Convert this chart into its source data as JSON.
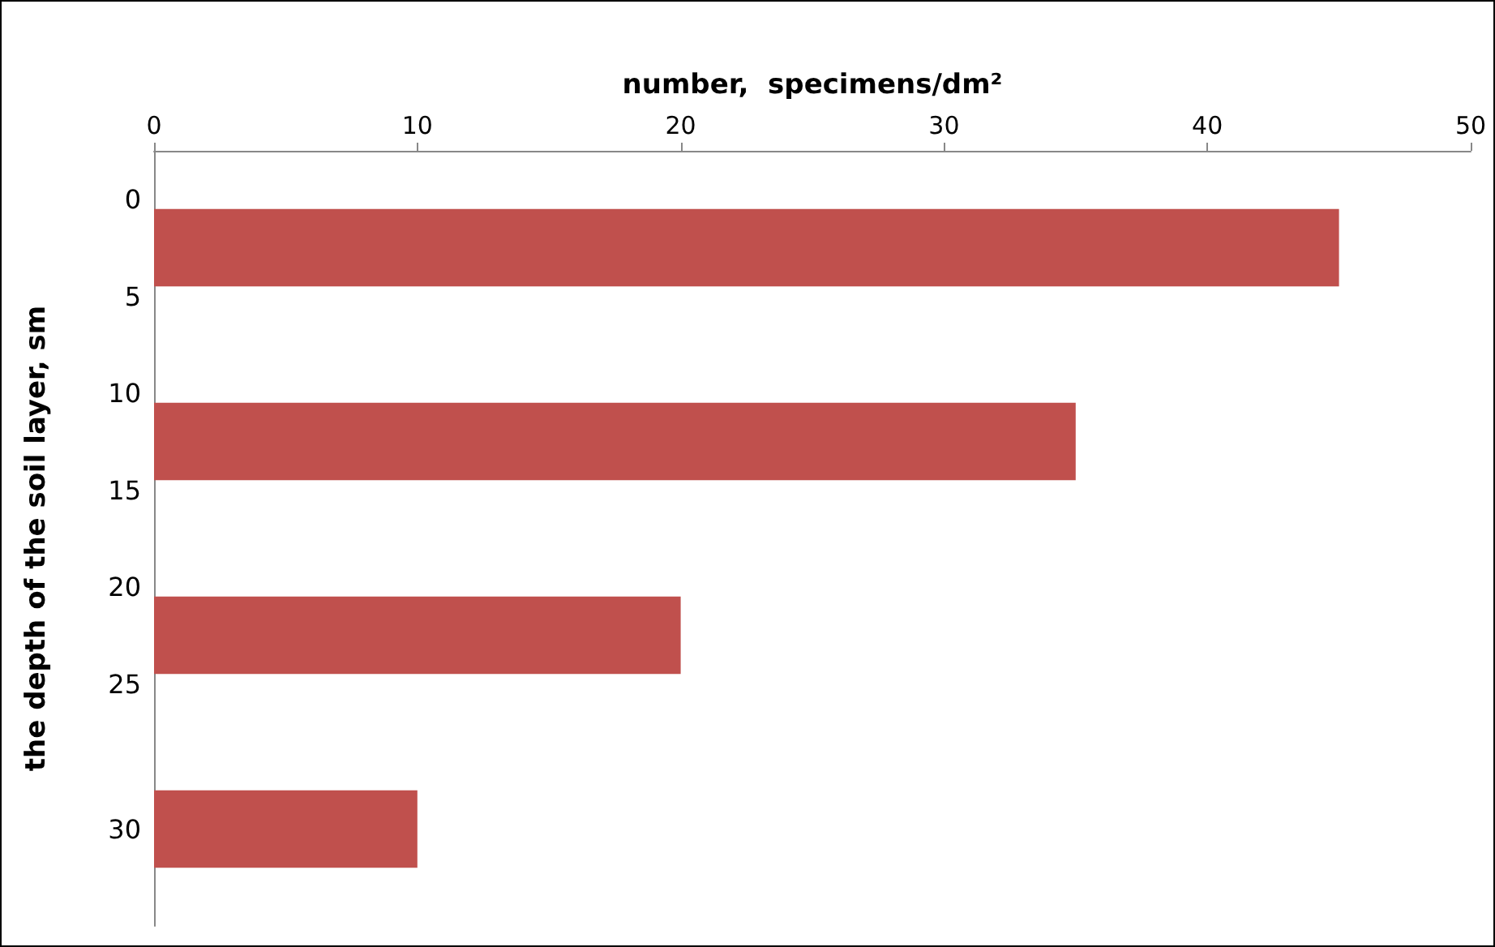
{
  "chart_data": {
    "type": "bar",
    "orientation": "horizontal",
    "xlabel": "number,  specimens/dm²",
    "ylabel": "the depth of the soil layer, sm",
    "categories": [
      "0\n5",
      "10\n15",
      "20\n25",
      "30"
    ],
    "values": [
      45,
      35,
      20,
      10
    ],
    "color": "#c0504d",
    "xlim": [
      0,
      50
    ],
    "xticks": [
      0,
      10,
      20,
      30,
      40,
      50
    ],
    "grid": false
  }
}
